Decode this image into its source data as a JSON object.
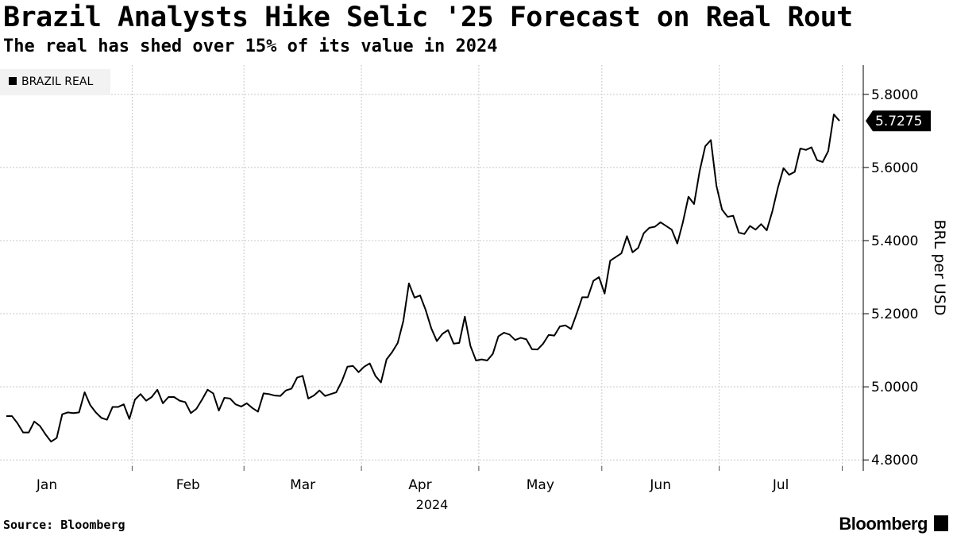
{
  "title": "Brazil Analysts Hike Selic '25 Forecast on Real Rout",
  "subtitle": "The real has shed over 15% of its value in 2024",
  "source": "Source: Bloomberg",
  "brand": "Bloomberg",
  "chart_data": {
    "type": "line",
    "series_name": "BRAZIL REAL",
    "ylabel": "BRL per USD",
    "year_label": "2024",
    "ylim": [
      4.77,
      5.88
    ],
    "yticks": [
      4.8,
      5.0,
      5.2,
      5.4,
      5.6,
      5.8
    ],
    "ytick_labels": [
      "4.8000",
      "5.0000",
      "5.2000",
      "5.4000",
      "5.6000",
      "5.8000"
    ],
    "months": [
      "Jan",
      "Feb",
      "Mar",
      "Apr",
      "May",
      "Jun",
      "Jul"
    ],
    "month_start_index": [
      1,
      23,
      43,
      64,
      85,
      107,
      128
    ],
    "last_value_label": "5.7275",
    "line_color": "#000000",
    "values": [
      4.92,
      4.92,
      4.9,
      4.875,
      4.875,
      4.905,
      4.893,
      4.87,
      4.85,
      4.86,
      4.925,
      4.93,
      4.928,
      4.93,
      4.985,
      4.95,
      4.93,
      4.915,
      4.91,
      4.945,
      4.945,
      4.952,
      4.912,
      4.965,
      4.98,
      4.962,
      4.972,
      4.992,
      4.955,
      4.972,
      4.972,
      4.962,
      4.958,
      4.928,
      4.94,
      4.965,
      4.992,
      4.982,
      4.935,
      4.97,
      4.968,
      4.952,
      4.946,
      4.955,
      4.942,
      4.932,
      4.982,
      4.98,
      4.976,
      4.975,
      4.99,
      4.995,
      5.025,
      5.03,
      4.968,
      4.976,
      4.99,
      4.975,
      4.98,
      4.985,
      5.015,
      5.055,
      5.057,
      5.04,
      5.055,
      5.064,
      5.03,
      5.012,
      5.075,
      5.095,
      5.12,
      5.18,
      5.283,
      5.244,
      5.25,
      5.21,
      5.16,
      5.125,
      5.145,
      5.155,
      5.118,
      5.12,
      5.192,
      5.112,
      5.072,
      5.075,
      5.072,
      5.09,
      5.138,
      5.148,
      5.143,
      5.128,
      5.134,
      5.13,
      5.103,
      5.102,
      5.118,
      5.142,
      5.14,
      5.165,
      5.168,
      5.158,
      5.2,
      5.245,
      5.245,
      5.29,
      5.3,
      5.255,
      5.345,
      5.355,
      5.365,
      5.412,
      5.368,
      5.38,
      5.42,
      5.435,
      5.438,
      5.45,
      5.44,
      5.43,
      5.392,
      5.45,
      5.52,
      5.5,
      5.59,
      5.658,
      5.675,
      5.55,
      5.485,
      5.465,
      5.468,
      5.422,
      5.418,
      5.44,
      5.43,
      5.445,
      5.428,
      5.48,
      5.545,
      5.598,
      5.58,
      5.588,
      5.652,
      5.648,
      5.655,
      5.62,
      5.615,
      5.645,
      5.745,
      5.7275
    ]
  }
}
